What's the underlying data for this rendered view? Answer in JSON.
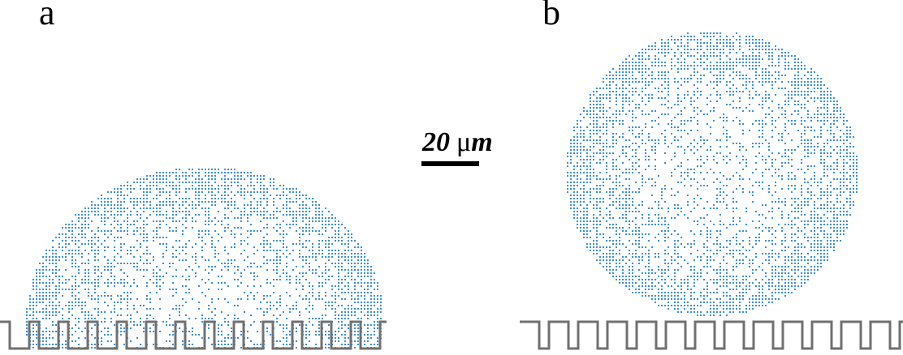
{
  "panels": [
    {
      "label": "a",
      "droplet_state": "wetted (Wenzel)"
    },
    {
      "label": "b",
      "droplet_state": "suspended"
    }
  ],
  "scale_bar": {
    "number": "20",
    "unit_prefix": "μ",
    "unit_letter": "m"
  },
  "colors": {
    "particles": "#3a8fd8",
    "substrate": "#707070",
    "text": "#000000"
  }
}
